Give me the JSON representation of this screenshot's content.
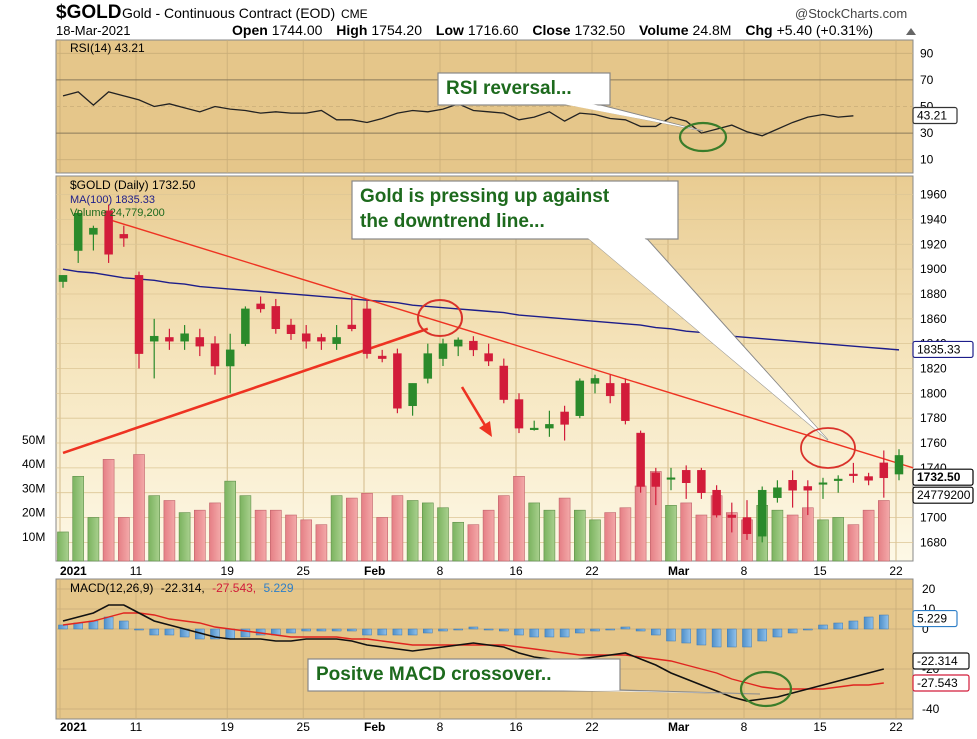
{
  "header": {
    "symbol": "$GOLD",
    "title": "Gold - Continuous Contract (EOD)",
    "exchange": "CME",
    "credit": "@StockCharts.com",
    "date": "18-Mar-2021",
    "open_label": "Open",
    "open": "1744.00",
    "high_label": "High",
    "high": "1754.20",
    "low_label": "Low",
    "low": "1716.60",
    "close_label": "Close",
    "close": "1732.50",
    "volume_label": "Volume",
    "volume": "24.8M",
    "chg_label": "Chg",
    "chg": "+5.40 (+0.31%)"
  },
  "colors": {
    "panel_bg": "#e7c98e",
    "price_bg_light": "#fdf6de",
    "up": "#2b8a2b",
    "down": "#d21c3a",
    "ma": "#1d1d8a",
    "trend": "#ee3322",
    "annot_circle_red": "#d9322a",
    "annot_circle_green": "#3a7d2a",
    "annot_text": "#1d6a1d"
  },
  "chart_data": [
    {
      "type": "line",
      "name": "rsi-panel",
      "legend": "RSI(14) 43.21",
      "y_ticks": [
        "90",
        "70",
        "50",
        "30",
        "10"
      ],
      "ylim": [
        0,
        100
      ],
      "current_label": "43.21",
      "values": [
        58,
        61,
        51,
        61,
        58,
        55,
        50,
        52,
        49,
        46,
        50,
        48,
        47,
        45,
        46,
        45,
        45,
        47,
        40,
        40,
        38,
        41,
        45,
        47,
        46,
        48,
        52,
        47,
        46,
        45,
        40,
        42,
        46,
        39,
        45,
        44,
        41,
        40,
        35,
        35,
        42,
        39,
        30,
        33,
        36,
        31,
        28,
        33,
        38,
        42,
        44,
        42,
        43
      ]
    },
    {
      "type": "candlestick",
      "name": "price-panel",
      "legend_symbol": "$GOLD (Daily) 1732.50",
      "legend_ma": "MA(100) 1835.33",
      "legend_volume": "Volume 24,779,200",
      "y_ticks": [
        "1960",
        "1940",
        "1920",
        "1900",
        "1880",
        "1860",
        "1840",
        "1820",
        "1800",
        "1780",
        "1760",
        "1740",
        "1720",
        "1700",
        "1680"
      ],
      "ylim": [
        1665,
        1975
      ],
      "last_price_label": "1732.50",
      "ma_label": "1835.33",
      "volume_last_label": "24779200",
      "volume_ticks": [
        "50M",
        "40M",
        "30M",
        "20M",
        "10M"
      ],
      "volume_ylim": [
        0,
        60
      ],
      "x_labels": [
        "2021",
        "11",
        "19",
        "25",
        "Feb",
        "8",
        "16",
        "22",
        "Mar",
        "8",
        "15",
        "22"
      ],
      "candles": [
        {
          "o": 1890,
          "h": 1895,
          "l": 1885,
          "c": 1895,
          "v": 12
        },
        {
          "o": 1915,
          "h": 1948,
          "l": 1905,
          "c": 1945,
          "v": 35
        },
        {
          "o": 1928,
          "h": 1935,
          "l": 1915,
          "c": 1933,
          "v": 18
        },
        {
          "o": 1947,
          "h": 1952,
          "l": 1905,
          "c": 1912,
          "v": 42
        },
        {
          "o": 1928,
          "h": 1935,
          "l": 1918,
          "c": 1925,
          "v": 18
        },
        {
          "o": 1895,
          "h": 1898,
          "l": 1820,
          "c": 1832,
          "v": 44
        },
        {
          "o": 1842,
          "h": 1860,
          "l": 1812,
          "c": 1846,
          "v": 27
        },
        {
          "o": 1845,
          "h": 1852,
          "l": 1835,
          "c": 1842,
          "v": 25
        },
        {
          "o": 1842,
          "h": 1855,
          "l": 1835,
          "c": 1848,
          "v": 20
        },
        {
          "o": 1845,
          "h": 1852,
          "l": 1830,
          "c": 1838,
          "v": 21
        },
        {
          "o": 1840,
          "h": 1846,
          "l": 1815,
          "c": 1822,
          "v": 24
        },
        {
          "o": 1822,
          "h": 1848,
          "l": 1800,
          "c": 1835,
          "v": 33
        },
        {
          "o": 1840,
          "h": 1870,
          "l": 1838,
          "c": 1868,
          "v": 27
        },
        {
          "o": 1872,
          "h": 1878,
          "l": 1865,
          "c": 1868,
          "v": 21
        },
        {
          "o": 1870,
          "h": 1876,
          "l": 1848,
          "c": 1852,
          "v": 21
        },
        {
          "o": 1855,
          "h": 1860,
          "l": 1843,
          "c": 1848,
          "v": 19
        },
        {
          "o": 1848,
          "h": 1855,
          "l": 1836,
          "c": 1842,
          "v": 17
        },
        {
          "o": 1845,
          "h": 1848,
          "l": 1835,
          "c": 1842,
          "v": 15
        },
        {
          "o": 1840,
          "h": 1855,
          "l": 1835,
          "c": 1845,
          "v": 27
        },
        {
          "o": 1855,
          "h": 1878,
          "l": 1850,
          "c": 1852,
          "v": 26
        },
        {
          "o": 1868,
          "h": 1875,
          "l": 1828,
          "c": 1832,
          "v": 28
        },
        {
          "o": 1830,
          "h": 1835,
          "l": 1825,
          "c": 1828,
          "v": 18
        },
        {
          "o": 1832,
          "h": 1836,
          "l": 1784,
          "c": 1788,
          "v": 27
        },
        {
          "o": 1790,
          "h": 1808,
          "l": 1782,
          "c": 1808,
          "v": 25
        },
        {
          "o": 1812,
          "h": 1840,
          "l": 1808,
          "c": 1832,
          "v": 24
        },
        {
          "o": 1828,
          "h": 1844,
          "l": 1822,
          "c": 1840,
          "v": 22
        },
        {
          "o": 1838,
          "h": 1845,
          "l": 1830,
          "c": 1843,
          "v": 16
        },
        {
          "o": 1842,
          "h": 1846,
          "l": 1830,
          "c": 1835,
          "v": 15
        },
        {
          "o": 1832,
          "h": 1840,
          "l": 1822,
          "c": 1826,
          "v": 21
        },
        {
          "o": 1822,
          "h": 1828,
          "l": 1792,
          "c": 1795,
          "v": 27
        },
        {
          "o": 1795,
          "h": 1800,
          "l": 1768,
          "c": 1772,
          "v": 35
        },
        {
          "o": 1772,
          "h": 1778,
          "l": 1770,
          "c": 1772,
          "v": 24
        },
        {
          "o": 1772,
          "h": 1786,
          "l": 1765,
          "c": 1775,
          "v": 21
        },
        {
          "o": 1785,
          "h": 1790,
          "l": 1762,
          "c": 1775,
          "v": 26
        },
        {
          "o": 1782,
          "h": 1812,
          "l": 1780,
          "c": 1810,
          "v": 21
        },
        {
          "o": 1808,
          "h": 1815,
          "l": 1800,
          "c": 1812,
          "v": 17
        },
        {
          "o": 1808,
          "h": 1815,
          "l": 1792,
          "c": 1798,
          "v": 20
        },
        {
          "o": 1808,
          "h": 1812,
          "l": 1775,
          "c": 1778,
          "v": 22
        },
        {
          "o": 1768,
          "h": 1770,
          "l": 1720,
          "c": 1725,
          "v": 31
        },
        {
          "o": 1736,
          "h": 1740,
          "l": 1710,
          "c": 1725,
          "v": 37
        },
        {
          "o": 1732,
          "h": 1740,
          "l": 1722,
          "c": 1732,
          "v": 23
        },
        {
          "o": 1738,
          "h": 1742,
          "l": 1715,
          "c": 1728,
          "v": 24
        },
        {
          "o": 1738,
          "h": 1740,
          "l": 1715,
          "c": 1720,
          "v": 19
        },
        {
          "o": 1722,
          "h": 1726,
          "l": 1700,
          "c": 1702,
          "v": 27
        },
        {
          "o": 1702,
          "h": 1712,
          "l": 1688,
          "c": 1700,
          "v": 20
        },
        {
          "o": 1700,
          "h": 1714,
          "l": 1682,
          "c": 1687,
          "v": 17
        },
        {
          "o": 1685,
          "h": 1725,
          "l": 1680,
          "c": 1722,
          "v": 23
        },
        {
          "o": 1716,
          "h": 1730,
          "l": 1712,
          "c": 1724,
          "v": 21
        },
        {
          "o": 1730,
          "h": 1738,
          "l": 1708,
          "c": 1722,
          "v": 19
        },
        {
          "o": 1725,
          "h": 1730,
          "l": 1702,
          "c": 1722,
          "v": 22
        },
        {
          "o": 1728,
          "h": 1732,
          "l": 1715,
          "c": 1728,
          "v": 17
        },
        {
          "o": 1730,
          "h": 1734,
          "l": 1720,
          "c": 1731,
          "v": 18
        },
        {
          "o": 1735,
          "h": 1744,
          "l": 1728,
          "c": 1734,
          "v": 15
        },
        {
          "o": 1733,
          "h": 1736,
          "l": 1726,
          "c": 1730,
          "v": 21
        },
        {
          "o": 1744,
          "h": 1754,
          "l": 1716,
          "c": 1732,
          "v": 25
        },
        {
          "o": 1735,
          "h": 1755,
          "l": 1730,
          "c": 1750,
          "v": 0
        }
      ],
      "ma100": [
        1900,
        1898,
        1897,
        1895,
        1893,
        1892,
        1891,
        1889,
        1888,
        1886,
        1885,
        1884,
        1883,
        1882,
        1881,
        1880,
        1879,
        1878,
        1877,
        1876,
        1875,
        1874,
        1873,
        1871,
        1870,
        1869,
        1868,
        1867,
        1866,
        1865,
        1863,
        1862,
        1861,
        1860,
        1859,
        1858,
        1857,
        1856,
        1855,
        1853,
        1852,
        1850,
        1849,
        1847,
        1846,
        1845,
        1844,
        1843,
        1842,
        1841,
        1840,
        1839,
        1838,
        1837,
        1836,
        1835
      ]
    },
    {
      "type": "line",
      "name": "macd-panel",
      "legend_name": "MACD(12,26,9)",
      "legend_macd": "-22.314,",
      "legend_signal": "-27.543,",
      "legend_hist": "5.229",
      "y_ticks": [
        "20",
        "10",
        "0",
        "-20",
        "-40"
      ],
      "ylim": [
        -45,
        25
      ],
      "labels": {
        "hist": "5.229",
        "macd": "-22.314",
        "signal": "-27.543"
      },
      "macd": [
        4,
        6,
        8,
        12,
        12,
        8,
        4,
        2,
        0,
        -2,
        -4,
        -5,
        -5,
        -5,
        -6,
        -6,
        -5,
        -5,
        -5,
        -6,
        -8,
        -9,
        -10,
        -11,
        -10,
        -9,
        -8,
        -7,
        -8,
        -9,
        -12,
        -14,
        -15,
        -16,
        -15,
        -14,
        -13,
        -12,
        -15,
        -18,
        -22,
        -25,
        -28,
        -31,
        -34,
        -36,
        -35,
        -34,
        -32,
        -30,
        -28,
        -26,
        -24,
        -22,
        -20
      ],
      "signal": [
        2,
        3,
        4,
        6,
        8,
        8,
        7,
        5,
        4,
        3,
        1,
        0,
        -1,
        -2,
        -3,
        -4,
        -4,
        -4,
        -4,
        -5,
        -5,
        -6,
        -7,
        -8,
        -8,
        -8,
        -8,
        -8,
        -8,
        -8,
        -9,
        -10,
        -11,
        -12,
        -13,
        -13,
        -13,
        -13,
        -14,
        -15,
        -16,
        -18,
        -20,
        -22,
        -25,
        -27,
        -29,
        -30,
        -30,
        -30,
        -30,
        -29,
        -28,
        -28,
        -27
      ],
      "hist": [
        2,
        3,
        4,
        6,
        4,
        0,
        -3,
        -3,
        -4,
        -5,
        -5,
        -5,
        -4,
        -3,
        -3,
        -2,
        -1,
        -1,
        -1,
        -1,
        -3,
        -3,
        -3,
        -3,
        -2,
        -1,
        0,
        1,
        0,
        -1,
        -3,
        -4,
        -4,
        -4,
        -2,
        -1,
        0,
        1,
        -1,
        -3,
        -6,
        -7,
        -8,
        -9,
        -9,
        -9,
        -6,
        -4,
        -2,
        0,
        2,
        3,
        4,
        6,
        7
      ]
    }
  ],
  "annotations": {
    "rsi": "RSI reversal...",
    "price_line1": "Gold is pressing up against",
    "price_line2": "the downtrend line...",
    "macd": "Positve MACD crossover.."
  }
}
